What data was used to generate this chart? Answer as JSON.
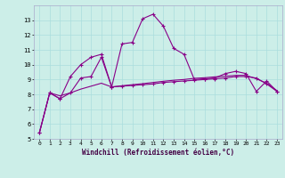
{
  "xlabel": "Windchill (Refroidissement éolien,°C)",
  "xlim": [
    -0.5,
    23.5
  ],
  "ylim": [
    5,
    14
  ],
  "yticks": [
    5,
    6,
    7,
    8,
    9,
    10,
    11,
    12,
    13
  ],
  "xticks": [
    0,
    1,
    2,
    3,
    4,
    5,
    6,
    7,
    8,
    9,
    10,
    11,
    12,
    13,
    14,
    15,
    16,
    17,
    18,
    19,
    20,
    21,
    22,
    23
  ],
  "bg_color": "#cceee8",
  "line_color": "#880088",
  "grid_color": "#aadddd",
  "series1_x": [
    0,
    1,
    2,
    3,
    4,
    5,
    6,
    7,
    8,
    9,
    10,
    11,
    12,
    13,
    14,
    15,
    16,
    17,
    18,
    19,
    20,
    21,
    22,
    23
  ],
  "series1_y": [
    5.4,
    8.1,
    7.7,
    8.1,
    9.1,
    9.2,
    10.5,
    8.5,
    8.55,
    8.6,
    8.65,
    8.7,
    8.8,
    8.85,
    8.9,
    8.95,
    9.0,
    9.05,
    9.1,
    9.2,
    9.2,
    9.1,
    8.7,
    8.2
  ],
  "series2_x": [
    0,
    1,
    2,
    3,
    4,
    5,
    6,
    7,
    8,
    9,
    10,
    11,
    12,
    13,
    14,
    15,
    16,
    17,
    18,
    19,
    20,
    21,
    22,
    23
  ],
  "series2_y": [
    5.4,
    8.1,
    7.7,
    9.2,
    10.0,
    10.5,
    10.7,
    8.5,
    11.4,
    11.5,
    13.1,
    13.4,
    12.6,
    11.1,
    10.7,
    9.0,
    9.05,
    9.1,
    9.4,
    9.55,
    9.4,
    8.2,
    8.9,
    8.2
  ],
  "series3_x": [
    0,
    1,
    2,
    3,
    4,
    5,
    6,
    7,
    8,
    9,
    10,
    11,
    12,
    13,
    14,
    15,
    16,
    17,
    18,
    19,
    20,
    21,
    22,
    23
  ],
  "series3_y": [
    5.4,
    8.1,
    7.9,
    8.1,
    8.35,
    8.55,
    8.75,
    8.5,
    8.58,
    8.65,
    8.72,
    8.8,
    8.88,
    8.95,
    9.0,
    9.08,
    9.12,
    9.18,
    9.22,
    9.28,
    9.28,
    9.05,
    8.75,
    8.25
  ]
}
